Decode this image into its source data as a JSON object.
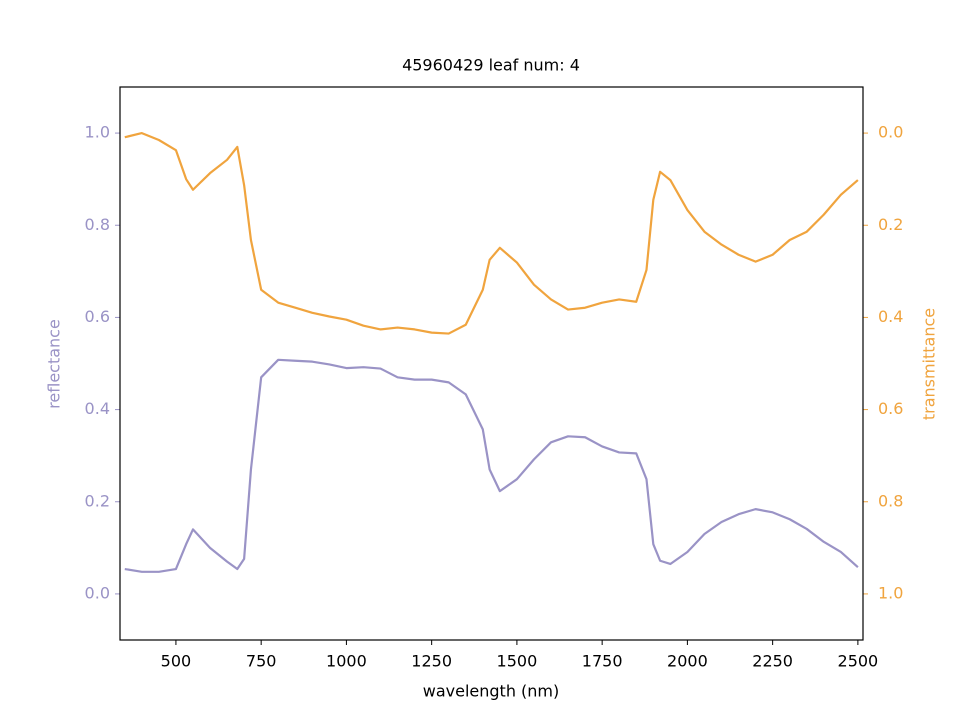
{
  "chart_data": {
    "type": "line",
    "title": "45960429 leaf num: 4",
    "x_label": "wavelength (nm)",
    "y_label": "reflectance",
    "y2_label": "transmittance",
    "x": [
      350,
      400,
      450,
      500,
      530,
      550,
      600,
      650,
      680,
      700,
      720,
      750,
      800,
      850,
      900,
      950,
      1000,
      1050,
      1100,
      1150,
      1200,
      1250,
      1300,
      1350,
      1400,
      1420,
      1450,
      1500,
      1550,
      1600,
      1650,
      1700,
      1750,
      1800,
      1850,
      1880,
      1900,
      1920,
      1950,
      2000,
      2050,
      2100,
      2150,
      2200,
      2250,
      2300,
      2350,
      2400,
      2450,
      2500
    ],
    "series": [
      {
        "name": "reflectance",
        "color": "#9a93c6",
        "axis": "y",
        "values": [
          0.054,
          0.048,
          0.048,
          0.054,
          0.108,
          0.14,
          0.1,
          0.07,
          0.054,
          0.076,
          0.27,
          0.47,
          0.508,
          0.506,
          0.504,
          0.498,
          0.49,
          0.492,
          0.489,
          0.47,
          0.465,
          0.465,
          0.459,
          0.433,
          0.357,
          0.27,
          0.223,
          0.249,
          0.292,
          0.329,
          0.342,
          0.34,
          0.32,
          0.307,
          0.305,
          0.249,
          0.108,
          0.072,
          0.065,
          0.091,
          0.13,
          0.156,
          0.173,
          0.184,
          0.177,
          0.162,
          0.141,
          0.113,
          0.091,
          0.058
        ]
      },
      {
        "name": "transmittance",
        "color": "#f0a43e",
        "axis": "y2",
        "values": [
          0.009,
          0.0,
          0.015,
          0.037,
          0.1,
          0.123,
          0.087,
          0.058,
          0.03,
          0.113,
          0.232,
          0.34,
          0.368,
          0.379,
          0.39,
          0.398,
          0.405,
          0.418,
          0.426,
          0.422,
          0.426,
          0.433,
          0.435,
          0.416,
          0.34,
          0.275,
          0.249,
          0.281,
          0.329,
          0.361,
          0.383,
          0.379,
          0.368,
          0.361,
          0.366,
          0.297,
          0.145,
          0.084,
          0.102,
          0.167,
          0.214,
          0.242,
          0.264,
          0.279,
          0.264,
          0.232,
          0.214,
          0.177,
          0.134,
          0.102
        ]
      }
    ],
    "xlim": [
      336,
      2515
    ],
    "xticks": [
      500,
      750,
      1000,
      1250,
      1500,
      1750,
      2000,
      2250,
      2500
    ],
    "ylim": [
      -0.1,
      1.1
    ],
    "yticks": [
      {
        "value": 0,
        "label": "0.0"
      },
      0.2,
      0.4,
      0.6,
      0.8,
      {
        "value": 1,
        "label": "1.0"
      }
    ],
    "y2lim": [
      1.1,
      -0.1
    ],
    "y2ticks": [
      {
        "value": 0,
        "label": "0.0"
      },
      0.2,
      0.4,
      0.6,
      0.8,
      {
        "value": 1,
        "label": "1.0"
      }
    ],
    "grid": false
  }
}
